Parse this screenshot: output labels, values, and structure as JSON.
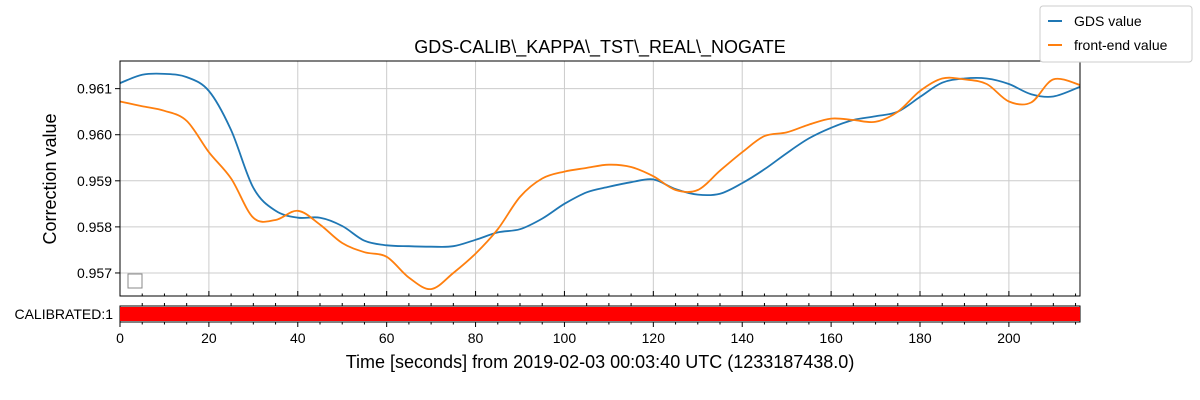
{
  "chart_data": {
    "type": "line",
    "title": "GDS-CALIB\\_KAPPA\\_TST\\_REAL\\_NOGATE",
    "xlabel": "Time [seconds] from 2019-02-03 00:03:40 UTC (1233187438.0)",
    "ylabel": "Correction value",
    "xlim": [
      0,
      216
    ],
    "ylim": [
      0.9565,
      0.9616
    ],
    "x_ticks": [
      0,
      20,
      40,
      60,
      80,
      100,
      120,
      140,
      160,
      180,
      200
    ],
    "y_ticks": [
      0.957,
      0.958,
      0.959,
      0.96,
      0.961
    ],
    "y_tick_labels": [
      "0.957",
      "0.958",
      "0.959",
      "0.960",
      "0.961"
    ],
    "grid": true,
    "legend_position": "top-right",
    "series": [
      {
        "name": "GDS value",
        "color": "#1f77b4",
        "x": [
          0,
          5,
          10,
          15,
          20,
          25,
          30,
          35,
          40,
          45,
          50,
          55,
          60,
          65,
          70,
          75,
          80,
          85,
          90,
          95,
          100,
          105,
          110,
          115,
          120,
          125,
          130,
          135,
          140,
          145,
          150,
          155,
          160,
          165,
          170,
          175,
          180,
          185,
          190,
          195,
          200,
          205,
          210,
          216
        ],
        "values": [
          0.96112,
          0.9613,
          0.96132,
          0.96125,
          0.96095,
          0.9601,
          0.95885,
          0.95835,
          0.9582,
          0.9582,
          0.95802,
          0.9577,
          0.9576,
          0.95758,
          0.95757,
          0.95758,
          0.95772,
          0.95788,
          0.95795,
          0.95818,
          0.9585,
          0.95875,
          0.95887,
          0.95897,
          0.95903,
          0.95882,
          0.9587,
          0.95872,
          0.95895,
          0.95925,
          0.9596,
          0.95992,
          0.96015,
          0.96032,
          0.9604,
          0.9605,
          0.96082,
          0.96113,
          0.96122,
          0.96122,
          0.9611,
          0.96088,
          0.96083,
          0.96104
        ]
      },
      {
        "name": "front-end value",
        "color": "#ff7f0e",
        "x": [
          0,
          5,
          10,
          15,
          20,
          25,
          30,
          35,
          40,
          45,
          50,
          55,
          60,
          65,
          70,
          75,
          80,
          85,
          90,
          95,
          100,
          105,
          110,
          115,
          120,
          125,
          130,
          135,
          140,
          145,
          150,
          155,
          160,
          165,
          170,
          175,
          180,
          185,
          190,
          195,
          200,
          205,
          210,
          216
        ],
        "values": [
          0.96072,
          0.96062,
          0.96052,
          0.9603,
          0.95962,
          0.95905,
          0.9582,
          0.95815,
          0.95835,
          0.95805,
          0.95765,
          0.95745,
          0.95735,
          0.9569,
          0.95665,
          0.957,
          0.95742,
          0.95795,
          0.95865,
          0.95905,
          0.9592,
          0.95928,
          0.95935,
          0.9593,
          0.9591,
          0.9588,
          0.9588,
          0.95922,
          0.95962,
          0.95997,
          0.96005,
          0.96022,
          0.96035,
          0.96032,
          0.96028,
          0.9605,
          0.96095,
          0.96122,
          0.9612,
          0.9611,
          0.96072,
          0.9607,
          0.9612,
          0.96108
        ]
      }
    ],
    "segment_bar": {
      "label": "CALIBRATED:1",
      "color": "#ff0000",
      "segments": [
        [
          0,
          216
        ]
      ]
    },
    "legend_marker": {
      "outline_color": "#888888"
    }
  }
}
